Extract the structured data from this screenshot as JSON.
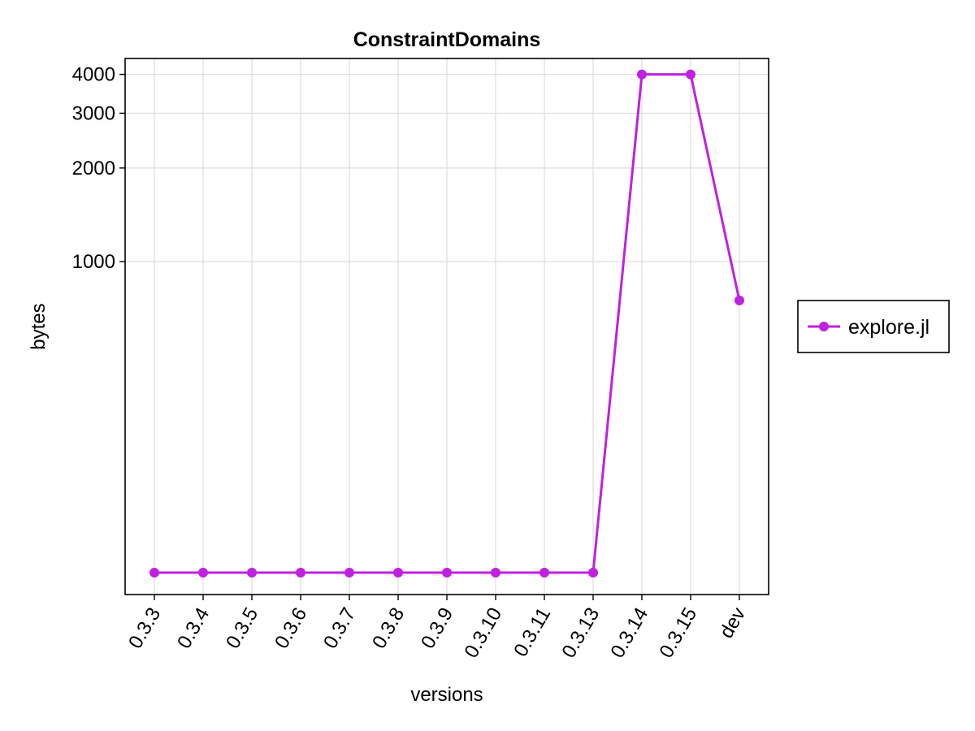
{
  "chart_data": {
    "type": "line",
    "title": "ConstraintDomains",
    "xlabel": "versions",
    "ylabel": "bytes",
    "categories": [
      "0.3.3",
      "0.3.4",
      "0.3.5",
      "0.3.6",
      "0.3.7",
      "0.3.8",
      "0.3.9",
      "0.3.10",
      "0.3.11",
      "0.3.13",
      "0.3.14",
      "0.3.15",
      "dev"
    ],
    "y_scale": "log",
    "ylim": [
      85,
      4500
    ],
    "y_ticks": [
      1000,
      2000,
      3000,
      4000
    ],
    "y_tick_labels": [
      "1000",
      "2000",
      "3000",
      "4000"
    ],
    "grid": true,
    "legend_position": "right",
    "series": [
      {
        "name": "explore.jl",
        "color": "#c020e0",
        "marker": "circle",
        "values": [
          100,
          100,
          100,
          100,
          100,
          100,
          100,
          100,
          100,
          100,
          4000,
          4000,
          750
        ]
      }
    ]
  }
}
